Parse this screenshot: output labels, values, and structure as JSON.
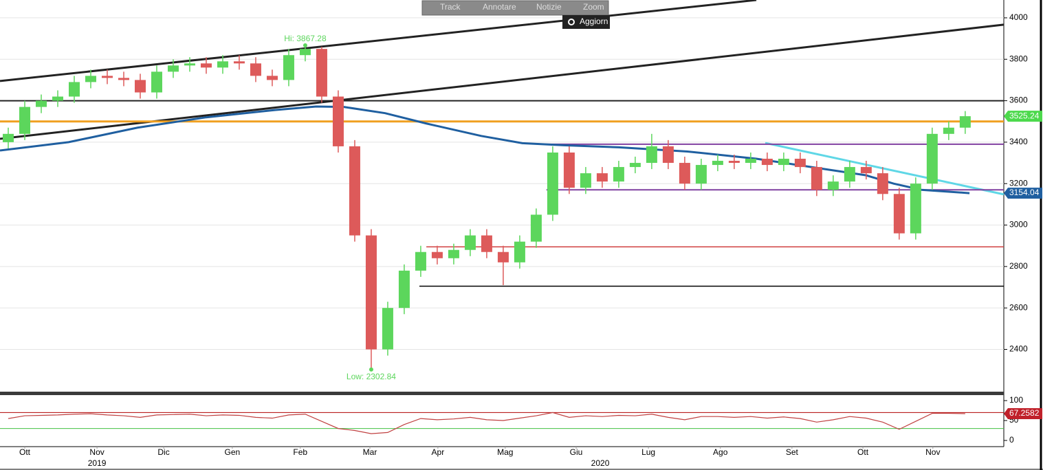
{
  "toolbar": {
    "buttons": [
      "Track",
      "Annotare",
      "Notizie",
      "Zoom"
    ],
    "refresh": "Aggiorn"
  },
  "chart_data": [
    {
      "type": "candlestick",
      "xlim": [
        0,
        304.2
      ],
      "ylim": [
        2196,
        4086
      ],
      "yticks": [
        2400,
        2600,
        2800,
        3000,
        3200,
        3400,
        3600,
        3800,
        4000
      ],
      "xticks": [
        {
          "value": 7.5,
          "label": "Ott"
        },
        {
          "value": 29.4,
          "label": "Nov"
        },
        {
          "value": 49.6,
          "label": "Dic"
        },
        {
          "value": 70.4,
          "label": "Gen"
        },
        {
          "value": 91,
          "label": "Feb"
        },
        {
          "value": 112.1,
          "label": "Mar"
        },
        {
          "value": 132.7,
          "label": "Apr"
        },
        {
          "value": 153.1,
          "label": "Mag"
        },
        {
          "value": 174.6,
          "label": "Giu"
        },
        {
          "value": 196.5,
          "label": "Lug"
        },
        {
          "value": 218.3,
          "label": "Ago"
        },
        {
          "value": 240,
          "label": "Set"
        },
        {
          "value": 261.5,
          "label": "Ott"
        },
        {
          "value": 282.7,
          "label": "Nov"
        }
      ],
      "years": [
        {
          "value": 29.4,
          "label": "2019"
        },
        {
          "value": 181.9,
          "label": "2020"
        }
      ],
      "up_color": "#5cd65c",
      "down_color": "#dd5a5a",
      "x": [
        2.5,
        7.5,
        12.5,
        17.5,
        22.5,
        27.5,
        32.5,
        37.5,
        42.5,
        47.5,
        52.5,
        57.5,
        62.5,
        67.5,
        72.5,
        77.5,
        82.5,
        87.5,
        92.5,
        97.5,
        102.5,
        107.5,
        112.5,
        117.5,
        122.5,
        127.5,
        132.5,
        137.5,
        142.5,
        147.5,
        152.5,
        157.5,
        162.5,
        167.5,
        172.5,
        177.5,
        182.5,
        187.5,
        192.5,
        197.5,
        202.5,
        207.5,
        212.5,
        217.5,
        222.5,
        227.5,
        232.5,
        237.5,
        242.5,
        247.5,
        252.5,
        257.5,
        262.5,
        267.5,
        272.5,
        277.5,
        282.5,
        287.5,
        292.5
      ],
      "open": [
        3400,
        3440,
        3570,
        3600,
        3620,
        3690,
        3720,
        3710,
        3700,
        3640,
        3740,
        3770,
        3780,
        3760,
        3790,
        3780,
        3720,
        3700,
        3820,
        3850,
        3620,
        3380,
        2950,
        2400,
        2600,
        2780,
        2870,
        2840,
        2880,
        2950,
        2870,
        2820,
        2920,
        3050,
        3350,
        3180,
        3250,
        3210,
        3280,
        3300,
        3380,
        3300,
        3200,
        3290,
        3310,
        3300,
        3320,
        3290,
        3320,
        3280,
        3170,
        3210,
        3280,
        3250,
        3150,
        2960,
        3200,
        3440,
        3470
      ],
      "high": [
        3470,
        3600,
        3630,
        3650,
        3720,
        3750,
        3750,
        3740,
        3730,
        3770,
        3800,
        3810,
        3810,
        3820,
        3820,
        3810,
        3750,
        3850,
        3867.28,
        3860,
        3650,
        3410,
        2980,
        2630,
        2810,
        2900,
        2900,
        2910,
        2980,
        2980,
        2900,
        2950,
        3080,
        3380,
        3380,
        3280,
        3280,
        3310,
        3330,
        3440,
        3410,
        3330,
        3320,
        3340,
        3340,
        3350,
        3350,
        3350,
        3350,
        3310,
        3240,
        3310,
        3310,
        3280,
        3180,
        3230,
        3470,
        3500,
        3550
      ],
      "low": [
        3370,
        3410,
        3540,
        3570,
        3590,
        3660,
        3680,
        3670,
        3610,
        3610,
        3710,
        3740,
        3730,
        3730,
        3750,
        3690,
        3670,
        3670,
        3790,
        3590,
        3350,
        2920,
        2302.84,
        2370,
        2570,
        2750,
        2810,
        2810,
        2850,
        2840,
        2710,
        2790,
        2890,
        3020,
        3150,
        3150,
        3180,
        3180,
        3250,
        3270,
        3270,
        3170,
        3170,
        3260,
        3270,
        3270,
        3260,
        3260,
        3250,
        3140,
        3140,
        3180,
        3220,
        3120,
        2930,
        2930,
        3170,
        3410,
        3440
      ],
      "close": [
        3440,
        3570,
        3600,
        3620,
        3690,
        3720,
        3710,
        3700,
        3640,
        3740,
        3770,
        3780,
        3760,
        3790,
        3780,
        3720,
        3700,
        3820,
        3850,
        3620,
        3380,
        2950,
        2400,
        2600,
        2780,
        2870,
        2840,
        2880,
        2950,
        2870,
        2820,
        2920,
        3050,
        3350,
        3180,
        3250,
        3210,
        3280,
        3300,
        3380,
        3300,
        3200,
        3290,
        3310,
        3300,
        3320,
        3290,
        3320,
        3280,
        3170,
        3210,
        3280,
        3250,
        3150,
        2960,
        3200,
        3440,
        3470,
        3525.24
      ],
      "annotations": [
        {
          "text": "Hi: 3867.28",
          "index": 18,
          "at": "high"
        },
        {
          "text": "Low: 2302.84",
          "index": 22,
          "at": "low"
        }
      ],
      "moving_average": {
        "color": "#1f5fa0",
        "x": [
          0,
          20.8,
          41.7,
          62.5,
          83.3,
          95.8,
          104.2,
          116.7,
          129.2,
          145.8,
          158.3,
          170.8,
          187.5,
          208.3,
          229.2,
          250,
          262.5,
          270.8,
          279.2,
          293.8
        ],
        "values": [
          3360,
          3400,
          3470,
          3520,
          3555,
          3572,
          3570,
          3540,
          3490,
          3430,
          3395,
          3385,
          3375,
          3355,
          3320,
          3270,
          3240,
          3200,
          3170,
          3154.04
        ]
      },
      "lines": [
        {
          "x": [
            0,
            229.2
          ],
          "y": [
            3695,
            4086
          ],
          "color": "#222222",
          "width": 3
        },
        {
          "x": [
            0,
            304.2
          ],
          "y": [
            3416,
            3967
          ],
          "color": "#222222",
          "width": 3
        },
        {
          "x": [
            231.9,
            304.2
          ],
          "y": [
            3396,
            3148
          ],
          "color": "#5fd7e6",
          "width": 3
        },
        {
          "x": [
            0,
            304.2
          ],
          "y": [
            3600,
            3600
          ],
          "color": "#222222",
          "width": 2
        },
        {
          "x": [
            0,
            304.2
          ],
          "y": [
            3500,
            3500
          ],
          "color": "#f0a020",
          "width": 3
        },
        {
          "x": [
            164.6,
            304.2
          ],
          "y": [
            3390,
            3390
          ],
          "color": "#8040a0",
          "width": 2
        },
        {
          "x": [
            165.6,
            304.2
          ],
          "y": [
            3170,
            3170
          ],
          "color": "#8040a0",
          "width": 2
        },
        {
          "x": [
            129.2,
            304.2
          ],
          "y": [
            2895,
            2895
          ],
          "color": "#d04040",
          "width": 1.5
        },
        {
          "x": [
            127.1,
            304.2
          ],
          "y": [
            2705,
            2705
          ],
          "color": "#000000",
          "width": 1.5
        }
      ],
      "last_labels": [
        {
          "value": 3525.24,
          "color": "#4cd94c"
        },
        {
          "value": 3154.04,
          "color": "#1f5fa0"
        }
      ]
    },
    {
      "type": "line",
      "ylim": [
        -15.5,
        113.8
      ],
      "yticks": [
        0,
        50,
        100
      ],
      "color": "#c04040",
      "levels": [
        {
          "value": 70,
          "color": "#b00000"
        },
        {
          "value": 30,
          "color": "#40c040"
        }
      ],
      "x": [
        2.5,
        7.5,
        12.5,
        17.5,
        22.5,
        27.5,
        32.5,
        37.5,
        42.5,
        47.5,
        52.5,
        57.5,
        62.5,
        67.5,
        72.5,
        77.5,
        82.5,
        87.5,
        92.5,
        97.5,
        102.5,
        107.5,
        112.5,
        117.5,
        122.5,
        127.5,
        132.5,
        137.5,
        142.5,
        147.5,
        152.5,
        157.5,
        162.5,
        167.5,
        172.5,
        177.5,
        182.5,
        187.5,
        192.5,
        197.5,
        202.5,
        207.5,
        212.5,
        217.5,
        222.5,
        227.5,
        232.5,
        237.5,
        242.5,
        247.5,
        252.5,
        257.5,
        262.5,
        267.5,
        272.5,
        277.5,
        282.5,
        287.5,
        292.5
      ],
      "values": [
        55,
        62,
        63,
        64,
        66,
        67,
        64,
        62,
        58,
        64,
        65,
        66,
        62,
        64,
        63,
        58,
        56,
        64,
        66,
        48,
        30,
        25,
        17,
        20,
        40,
        55,
        52,
        54,
        58,
        52,
        50,
        56,
        62,
        70,
        58,
        62,
        60,
        63,
        62,
        66,
        58,
        52,
        60,
        60,
        58,
        60,
        56,
        59,
        55,
        46,
        52,
        60,
        56,
        46,
        28,
        48,
        68,
        68,
        67.2582
      ],
      "last_label": {
        "value": 67.2582,
        "color": "#c0202a"
      }
    }
  ]
}
